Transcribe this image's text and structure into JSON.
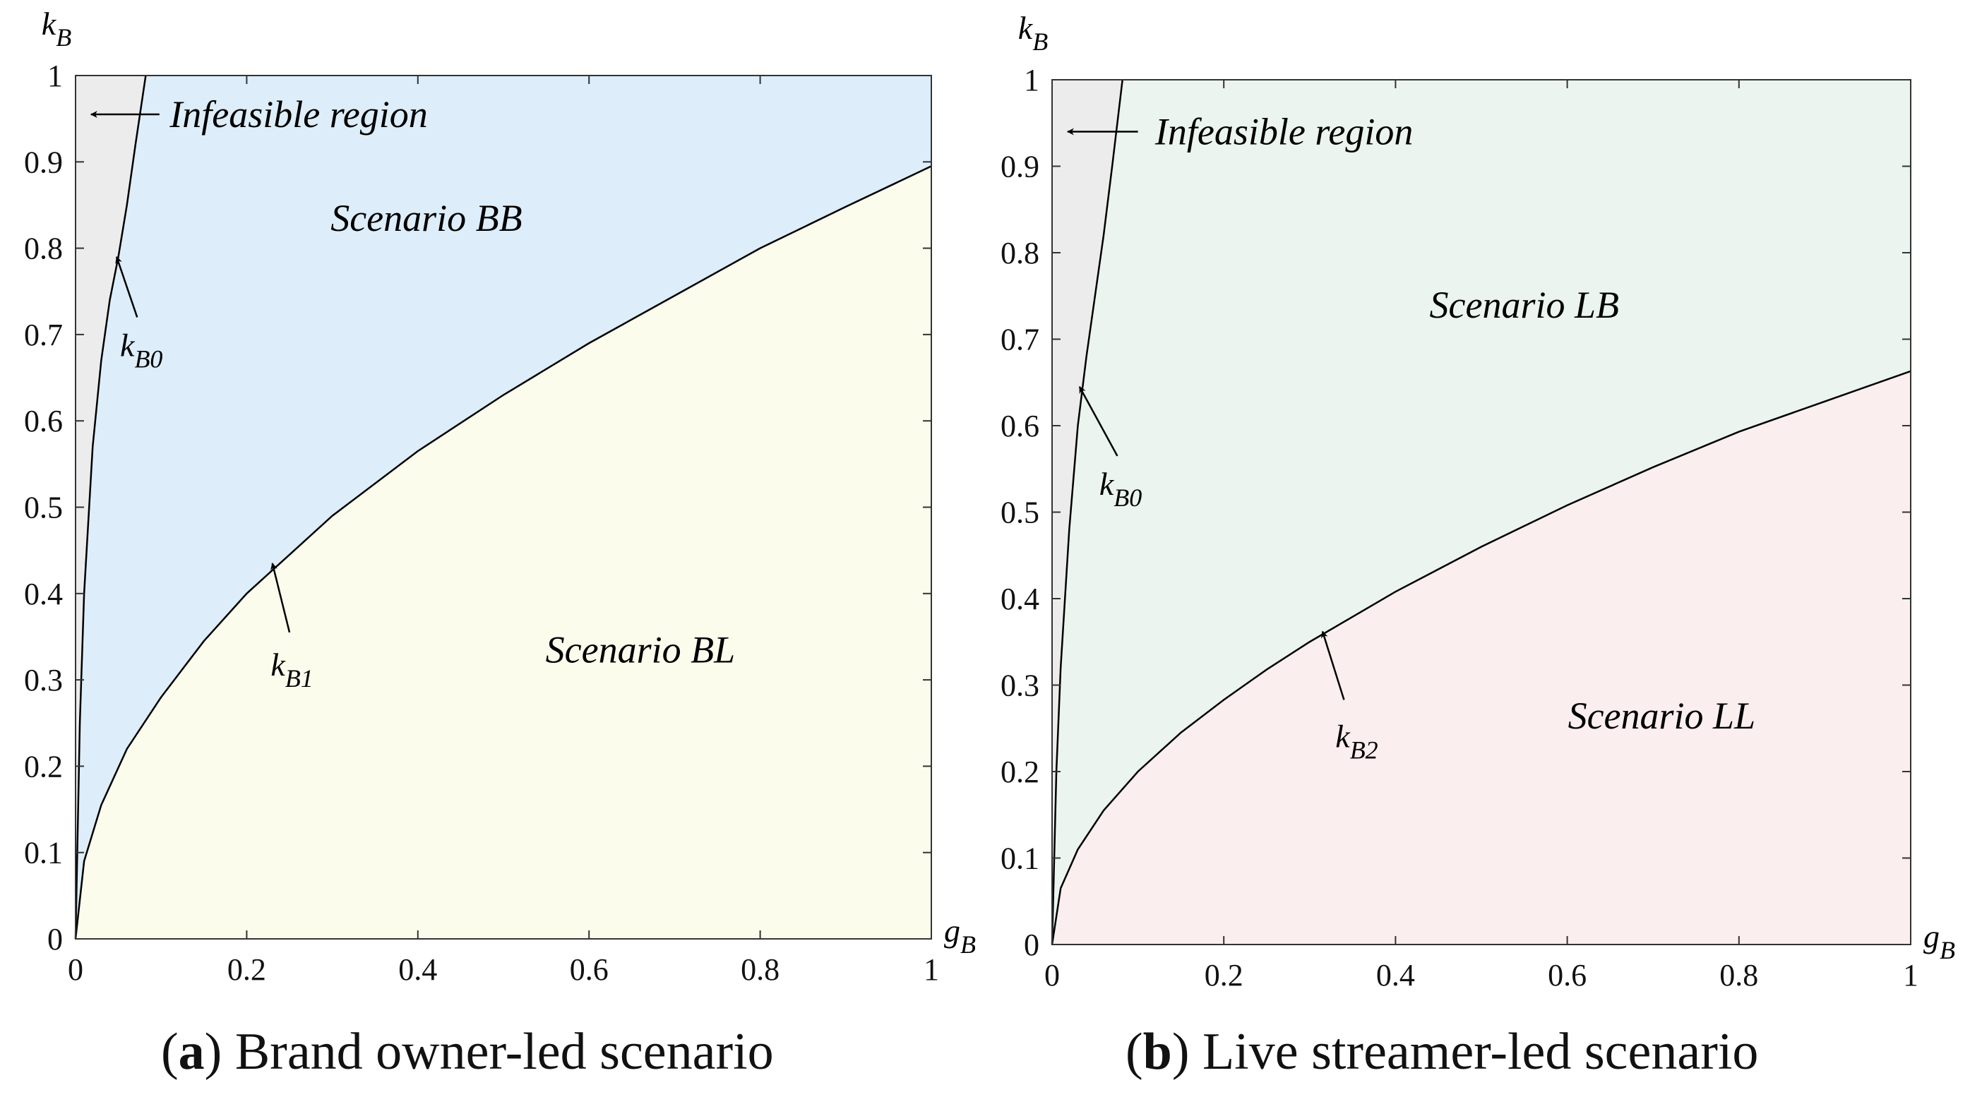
{
  "captions": [
    {
      "tag": "a",
      "text": "Brand owner-led scenario"
    },
    {
      "tag": "b",
      "text": "Live streamer-led scenario"
    }
  ],
  "chart_data": [
    {
      "type": "area",
      "xlabel": {
        "base": "g",
        "sub": "B"
      },
      "ylabel": {
        "base": "k",
        "sub": "B"
      },
      "xlim": [
        0,
        1
      ],
      "ylim": [
        0,
        1
      ],
      "xticks": [
        0,
        0.2,
        0.4,
        0.6,
        0.8,
        1
      ],
      "xtick_labels": [
        "0",
        "0.2",
        "0.4",
        "0.6",
        "0.8",
        "1"
      ],
      "yticks": [
        0,
        0.1,
        0.2,
        0.3,
        0.4,
        0.5,
        0.6,
        0.7,
        0.8,
        0.9,
        1
      ],
      "ytick_labels": [
        "0",
        "0.1",
        "0.2",
        "0.3",
        "0.4",
        "0.5",
        "0.6",
        "0.7",
        "0.8",
        "0.9",
        "1"
      ],
      "grid": false,
      "colors": {
        "infeasible": "#ececec",
        "upper": "#ddedf9",
        "lower": "#fbfcec"
      },
      "curves": {
        "kB0": {
          "x": [
            0,
            0.005,
            0.01,
            0.02,
            0.03,
            0.04,
            0.05,
            0.06,
            0.07,
            0.082
          ],
          "y": [
            0,
            0.25,
            0.4,
            0.57,
            0.67,
            0.74,
            0.79,
            0.85,
            0.92,
            1.0
          ]
        },
        "kB1": {
          "x": [
            0,
            0.01,
            0.03,
            0.06,
            0.1,
            0.15,
            0.2,
            0.25,
            0.3,
            0.4,
            0.5,
            0.6,
            0.7,
            0.8,
            0.9,
            1.0
          ],
          "y": [
            0,
            0.09,
            0.155,
            0.22,
            0.28,
            0.345,
            0.4,
            0.445,
            0.49,
            0.565,
            0.63,
            0.69,
            0.745,
            0.8,
            0.848,
            0.895
          ]
        }
      },
      "regions": {
        "upper": "Scenario BB",
        "lower": "Scenario BL",
        "infeasible": "Infeasible region"
      },
      "annotations": [
        {
          "base": "k",
          "sub": "B0"
        },
        {
          "base": "k",
          "sub": "B1"
        }
      ]
    },
    {
      "type": "area",
      "xlabel": {
        "base": "g",
        "sub": "B"
      },
      "ylabel": {
        "base": "k",
        "sub": "B"
      },
      "xlim": [
        0,
        1
      ],
      "ylim": [
        0,
        1
      ],
      "xticks": [
        0,
        0.2,
        0.4,
        0.6,
        0.8,
        1
      ],
      "xtick_labels": [
        "0",
        "0.2",
        "0.4",
        "0.6",
        "0.8",
        "1"
      ],
      "yticks": [
        0,
        0.1,
        0.2,
        0.3,
        0.4,
        0.5,
        0.6,
        0.7,
        0.8,
        0.9,
        1
      ],
      "ytick_labels": [
        "0",
        "0.1",
        "0.2",
        "0.3",
        "0.4",
        "0.5",
        "0.6",
        "0.7",
        "0.8",
        "0.9",
        "1"
      ],
      "grid": false,
      "colors": {
        "infeasible": "#ececec",
        "upper": "#ebf4ee",
        "lower": "#fbeeee"
      },
      "curves": {
        "kB0": {
          "x": [
            0,
            0.005,
            0.01,
            0.02,
            0.03,
            0.04,
            0.05,
            0.06,
            0.07,
            0.082
          ],
          "y": [
            0,
            0.2,
            0.32,
            0.48,
            0.6,
            0.68,
            0.75,
            0.82,
            0.9,
            1.0
          ]
        },
        "kB2": {
          "x": [
            0,
            0.01,
            0.03,
            0.06,
            0.1,
            0.15,
            0.2,
            0.25,
            0.3,
            0.4,
            0.5,
            0.6,
            0.7,
            0.8,
            0.9,
            1.0
          ],
          "y": [
            0,
            0.065,
            0.11,
            0.155,
            0.2,
            0.245,
            0.283,
            0.318,
            0.35,
            0.408,
            0.46,
            0.508,
            0.552,
            0.593,
            0.628,
            0.663
          ]
        }
      },
      "regions": {
        "upper": "Scenario LB",
        "lower": "Scenario LL",
        "infeasible": "Infeasible region"
      },
      "annotations": [
        {
          "base": "k",
          "sub": "B0"
        },
        {
          "base": "k",
          "sub": "B2"
        }
      ]
    }
  ]
}
